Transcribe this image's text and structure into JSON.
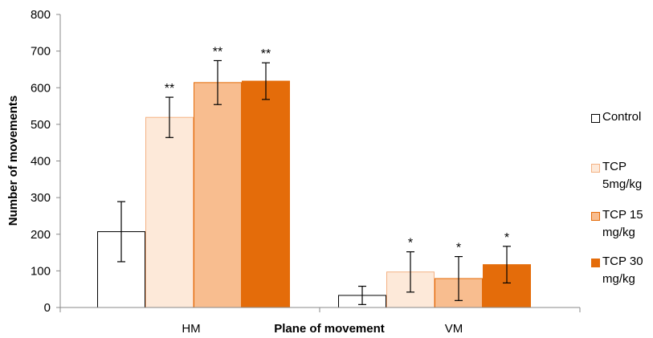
{
  "chart_data": {
    "type": "bar",
    "categories": [
      "HM",
      "VM"
    ],
    "xlabel": "Plane of movement",
    "ylabel": "Number of movements",
    "ylim": [
      0,
      800
    ],
    "yticks": [
      0,
      100,
      200,
      300,
      400,
      500,
      600,
      700,
      800
    ],
    "grid": false,
    "legend_position": "right",
    "series": [
      {
        "name": "Control",
        "color": "#ffffff",
        "stroke": "#000000",
        "values": [
          207,
          33
        ],
        "errors": [
          82,
          25
        ],
        "significance": [
          "",
          ""
        ]
      },
      {
        "name": "TCP 5mg/kg",
        "color": "#fde9d9",
        "stroke": "#f4b183",
        "values": [
          519,
          97
        ],
        "errors": [
          55,
          55
        ],
        "significance": [
          "**",
          "*"
        ]
      },
      {
        "name": "TCP 15 mg/kg",
        "color": "#f8bd8f",
        "stroke": "#e46c0a",
        "values": [
          614,
          79
        ],
        "errors": [
          60,
          60
        ],
        "significance": [
          "**",
          "*"
        ]
      },
      {
        "name": "TCP 30 mg/kg",
        "color": "#e46c0a",
        "stroke": "#e46c0a",
        "values": [
          618,
          117
        ],
        "errors": [
          50,
          50
        ],
        "significance": [
          "**",
          "*"
        ]
      }
    ]
  },
  "legend": [
    {
      "text": "Control",
      "swatch": "#ffffff",
      "border": "#000000"
    },
    {
      "text": "TCP 5mg/kg",
      "swatch": "#fde9d9",
      "border": "#f4b183"
    },
    {
      "text": "TCP 15 mg/kg",
      "swatch": "#f8bd8f",
      "border": "#e46c0a"
    },
    {
      "text": "TCP 30 mg/kg",
      "swatch": "#e46c0a",
      "border": "#e46c0a"
    }
  ]
}
